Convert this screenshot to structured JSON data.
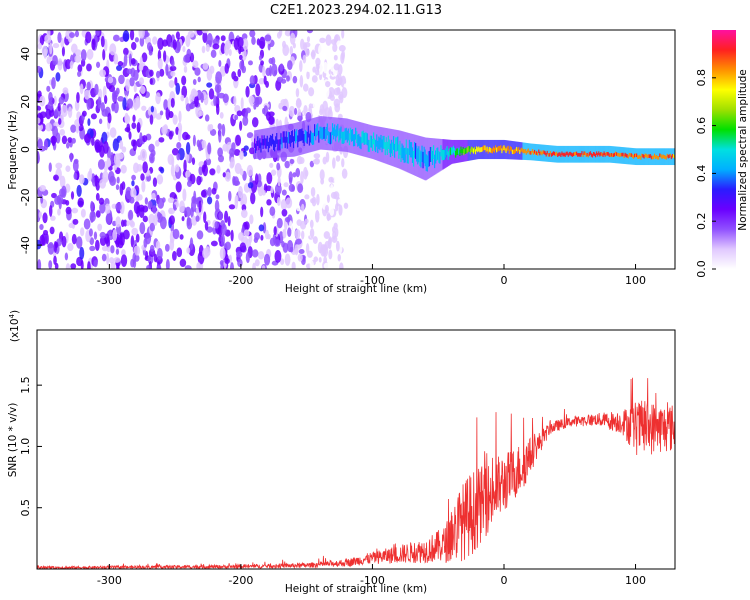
{
  "title": "C2E1.2023.294.02.11.G13",
  "chart_data": [
    {
      "type": "heatmap",
      "panel": "spectrogram",
      "xlabel": "Height of straight line (km)",
      "ylabel": "Frequency (Hz)",
      "xlim": [
        -355,
        130
      ],
      "ylim": [
        -50,
        50
      ],
      "x_ticks": [
        -300,
        -200,
        -100,
        0,
        100
      ],
      "y_ticks": [
        -40,
        -20,
        0,
        20,
        40
      ],
      "colorbar": {
        "label": "Normalized spectral amplitude",
        "range": [
          0,
          1
        ],
        "ticks": [
          "0.0",
          "0.2",
          "0.4",
          "0.6",
          "0.8"
        ],
        "colors": [
          "#ffffff",
          "#e0c8ff",
          "#9050ff",
          "#6a00ff",
          "#2a1cff",
          "#00b0ff",
          "#00e0e0",
          "#00e000",
          "#a0e000",
          "#ffff00",
          "#ff9000",
          "#ff2020",
          "#ff10a0"
        ]
      },
      "noise_region": {
        "x": [
          -355,
          -120
        ],
        "freq_range": [
          -50,
          50
        ],
        "amplitude": [
          0.05,
          0.3
        ]
      },
      "signal_band": [
        {
          "x": -190,
          "freq": 2,
          "width": 8,
          "amplitude": 0.3
        },
        {
          "x": -160,
          "freq": 4,
          "width": 10,
          "amplitude": 0.35
        },
        {
          "x": -140,
          "freq": 7,
          "width": 10,
          "amplitude": 0.4
        },
        {
          "x": -120,
          "freq": 6,
          "width": 10,
          "amplitude": 0.45
        },
        {
          "x": -100,
          "freq": 3,
          "width": 10,
          "amplitude": 0.45
        },
        {
          "x": -80,
          "freq": 0,
          "width": 12,
          "amplitude": 0.45
        },
        {
          "x": -60,
          "freq": -4,
          "width": 14,
          "amplitude": 0.4
        },
        {
          "x": -40,
          "freq": -1,
          "width": 6,
          "amplitude": 0.5
        },
        {
          "x": -20,
          "freq": 0,
          "width": 4,
          "amplitude": 0.75
        },
        {
          "x": 0,
          "freq": 0,
          "width": 4,
          "amplitude": 0.8
        },
        {
          "x": 20,
          "freq": -1,
          "width": 3,
          "amplitude": 0.85
        },
        {
          "x": 40,
          "freq": -2,
          "width": 3,
          "amplitude": 0.9
        },
        {
          "x": 60,
          "freq": -2,
          "width": 3,
          "amplitude": 0.9
        },
        {
          "x": 80,
          "freq": -2,
          "width": 3,
          "amplitude": 0.9
        },
        {
          "x": 100,
          "freq": -3,
          "width": 3,
          "amplitude": 0.85
        },
        {
          "x": 120,
          "freq": -3,
          "width": 3,
          "amplitude": 0.85
        }
      ]
    },
    {
      "type": "line",
      "panel": "snr",
      "xlabel": "Height of straight line (km)",
      "ylabel": "SNR (10 * v/v)",
      "multiplier_label": "(x10",
      "multiplier_exp": "4",
      "xlim": [
        -355,
        130
      ],
      "ylim": [
        0,
        1.95
      ],
      "x_ticks": [
        -300,
        -200,
        -100,
        0,
        100
      ],
      "y_ticks": [
        0.5,
        1.0,
        1.5
      ],
      "y_tick_labels": [
        "0.5",
        "1.0",
        "1.5"
      ],
      "color": "#ee3030",
      "envelope": {
        "x": [
          -355,
          -200,
          -150,
          -120,
          -100,
          -80,
          -60,
          -45,
          -35,
          -25,
          -15,
          -5,
          5,
          15,
          25,
          35,
          50,
          70,
          90,
          100,
          110,
          120,
          130
        ],
        "base": [
          0.01,
          0.02,
          0.03,
          0.05,
          0.09,
          0.12,
          0.15,
          0.2,
          0.35,
          0.45,
          0.55,
          0.65,
          0.75,
          0.85,
          1.0,
          1.15,
          1.2,
          1.22,
          1.2,
          1.15,
          1.15,
          1.15,
          1.15
        ],
        "spread": [
          0.02,
          0.03,
          0.04,
          0.06,
          0.1,
          0.15,
          0.2,
          0.3,
          0.6,
          0.7,
          0.6,
          0.55,
          0.45,
          0.4,
          0.2,
          0.1,
          0.08,
          0.1,
          0.2,
          0.45,
          0.45,
          0.4,
          0.4
        ]
      }
    }
  ]
}
